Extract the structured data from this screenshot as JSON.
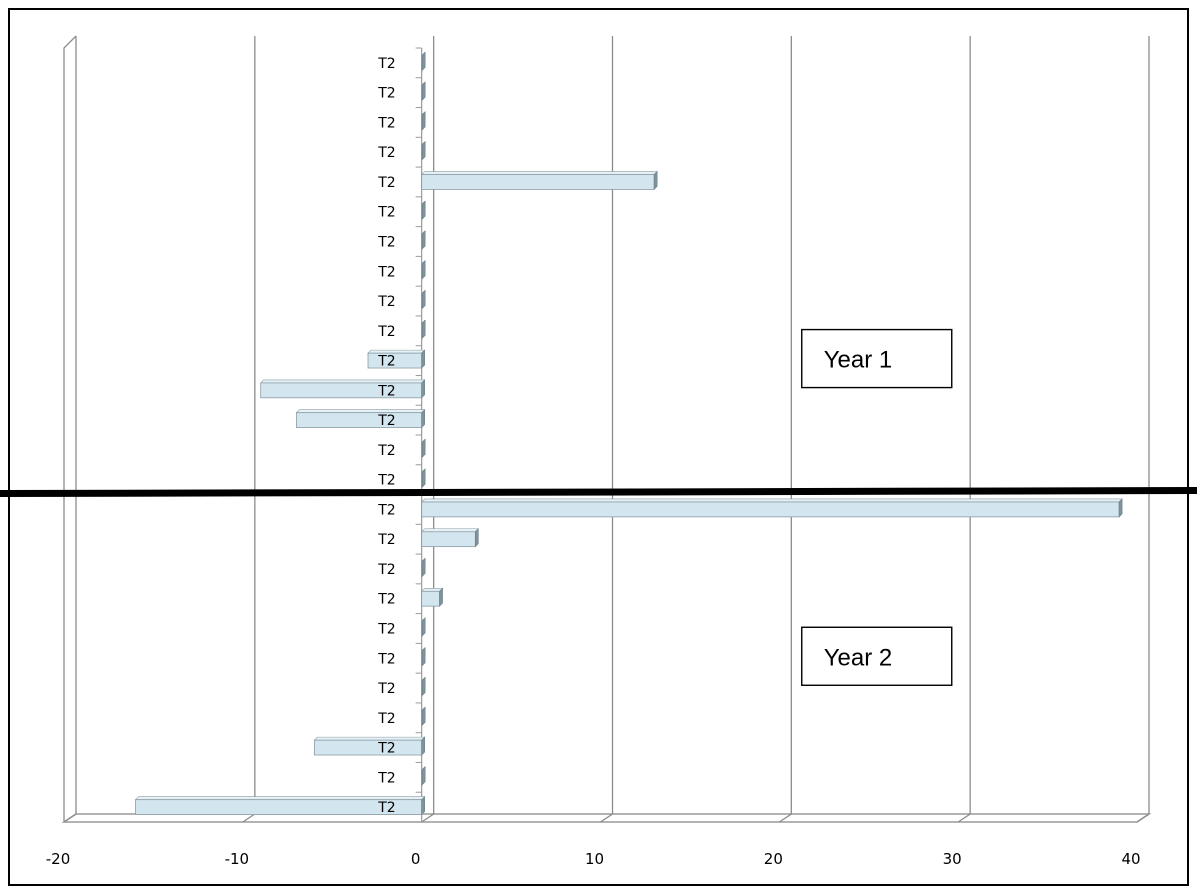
{
  "chart_data": {
    "type": "bar",
    "orientation": "horizontal",
    "style": "3d-clustered",
    "bar_color": "#d3e6ef",
    "bar_edge_color": "#8a9ca5",
    "grid": true,
    "xlim": [
      -20,
      40
    ],
    "xticks": [
      "-20",
      "-10",
      "0",
      "10",
      "20",
      "30",
      "40"
    ],
    "xtick_values": [
      -20,
      -10,
      0,
      10,
      20,
      30,
      40
    ],
    "categories": [
      "T2",
      "T2",
      "T2",
      "T2",
      "T2",
      "T2",
      "T2",
      "T2",
      "T2",
      "T2",
      "T2",
      "T2",
      "T2",
      "T2",
      "T2",
      "T2",
      "T2",
      "T2",
      "T2",
      "T2",
      "T2",
      "T2",
      "T2",
      "T2",
      "T2",
      "T2"
    ],
    "values": [
      0,
      0,
      0,
      0,
      13,
      0,
      0,
      0,
      0,
      0,
      -3,
      -9,
      -7,
      0,
      0,
      39,
      3,
      0,
      1,
      0,
      0,
      0,
      0,
      -6,
      0,
      -16
    ],
    "annotations": [
      {
        "text": "Year 1",
        "x": 25,
        "category_index": 10
      },
      {
        "text": "Year 2",
        "x": 25,
        "category_index": 20
      }
    ],
    "divider_after_index": 14
  }
}
